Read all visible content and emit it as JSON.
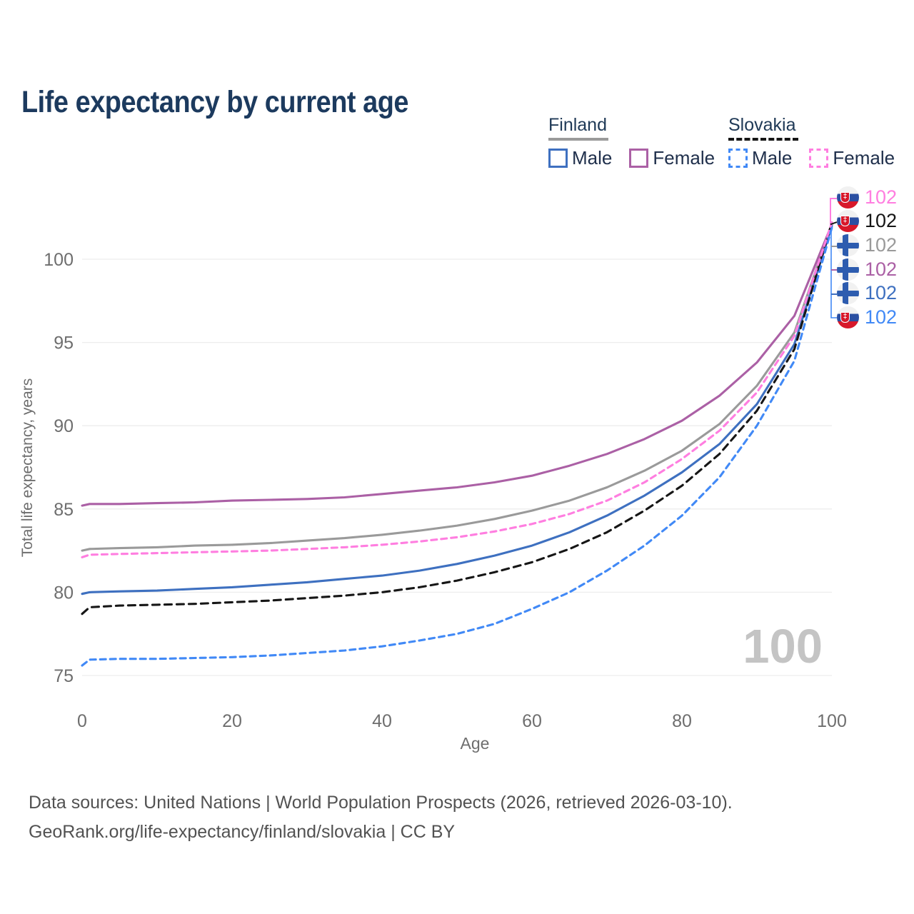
{
  "title": "Life expectancy by current age",
  "legend": {
    "finland": {
      "title": "Finland",
      "male_label": "Male",
      "female_label": "Female"
    },
    "slovakia": {
      "title": "Slovakia",
      "male_label": "Male",
      "female_label": "Female"
    }
  },
  "watermark": "100",
  "footer": {
    "line1": "Data sources: United Nations | World Population Prospects (2026, retrieved 2026-03-10).",
    "line2": "GeoRank.org/life-expectancy/finland/slovakia | CC BY"
  },
  "colors": {
    "title_text": "#1c3a5e",
    "legend_text": "#20304c",
    "axis_text": "#6e6e6e",
    "grid": "#ededed",
    "watermark": "#c4c4c4",
    "footer_text": "#525252",
    "finland_underline": "#9a9a9a",
    "slovakia_underline": "#161616"
  },
  "chart_data": {
    "type": "line",
    "title": "Life expectancy by current age",
    "xlabel": "Age",
    "ylabel": "Total life expectancy, years",
    "xlim": [
      0,
      100
    ],
    "ylim": [
      75,
      102.5
    ],
    "x_ticks": [
      0,
      20,
      40,
      60,
      80,
      100
    ],
    "y_ticks": [
      75,
      80,
      85,
      90,
      95,
      100
    ],
    "grid": "horizontal-only",
    "legend_position": "top-right",
    "ages": [
      0,
      1,
      5,
      10,
      15,
      20,
      25,
      30,
      35,
      40,
      45,
      50,
      55,
      60,
      65,
      70,
      75,
      80,
      85,
      90,
      95,
      100
    ],
    "series": [
      {
        "id": "finland_total",
        "name": "Finland Total",
        "country": "Finland",
        "sex": "Total",
        "style": "solid",
        "color": "#9a9a9a",
        "end_value": 102,
        "values": [
          82.5,
          82.6,
          82.65,
          82.7,
          82.8,
          82.85,
          82.95,
          83.1,
          83.25,
          83.45,
          83.7,
          84.0,
          84.4,
          84.9,
          85.5,
          86.3,
          87.3,
          88.5,
          90.1,
          92.4,
          95.6,
          102.1
        ]
      },
      {
        "id": "finland_female",
        "name": "Finland Female",
        "country": "Finland",
        "sex": "Female",
        "style": "solid",
        "color": "#ab60a5",
        "end_value": 102,
        "values": [
          85.2,
          85.3,
          85.3,
          85.35,
          85.4,
          85.5,
          85.55,
          85.6,
          85.7,
          85.9,
          86.1,
          86.3,
          86.6,
          87.0,
          87.6,
          88.3,
          89.2,
          90.3,
          91.8,
          93.8,
          96.6,
          102.1
        ]
      },
      {
        "id": "finland_male",
        "name": "Finland Male",
        "country": "Finland",
        "sex": "Male",
        "style": "solid",
        "color": "#3e70c0",
        "end_value": 102,
        "values": [
          79.9,
          80.0,
          80.05,
          80.1,
          80.2,
          80.3,
          80.45,
          80.6,
          80.8,
          81.0,
          81.3,
          81.7,
          82.2,
          82.8,
          83.6,
          84.6,
          85.8,
          87.2,
          88.9,
          91.3,
          94.9,
          102.0
        ]
      },
      {
        "id": "slovakia_total",
        "name": "Slovakia Total",
        "country": "Slovakia",
        "sex": "Total",
        "style": "dashed",
        "color": "#161616",
        "end_value": 102,
        "values": [
          78.7,
          79.1,
          79.2,
          79.25,
          79.3,
          79.4,
          79.5,
          79.65,
          79.8,
          80.0,
          80.3,
          80.7,
          81.2,
          81.8,
          82.6,
          83.6,
          84.9,
          86.4,
          88.3,
          90.9,
          94.6,
          102.2
        ]
      },
      {
        "id": "slovakia_female",
        "name": "Slovakia Female",
        "country": "Slovakia",
        "sex": "Female",
        "style": "dashed",
        "color": "#ff7ee0",
        "end_value": 102,
        "values": [
          82.1,
          82.25,
          82.3,
          82.35,
          82.4,
          82.45,
          82.5,
          82.6,
          82.7,
          82.85,
          83.05,
          83.3,
          83.65,
          84.1,
          84.7,
          85.5,
          86.6,
          88.0,
          89.7,
          92.0,
          95.4,
          102.2
        ]
      },
      {
        "id": "slovakia_male",
        "name": "Slovakia Male",
        "country": "Slovakia",
        "sex": "Male",
        "style": "dashed",
        "color": "#4189f6",
        "end_value": 102,
        "values": [
          75.6,
          75.95,
          76.0,
          76.0,
          76.05,
          76.1,
          76.2,
          76.35,
          76.5,
          76.75,
          77.1,
          77.5,
          78.1,
          79.0,
          80.0,
          81.3,
          82.8,
          84.6,
          86.9,
          90.0,
          93.9,
          101.9
        ]
      }
    ],
    "right_labels": [
      {
        "series": "slovakia_female",
        "flag": "slovakia",
        "value": "102"
      },
      {
        "series": "slovakia_total",
        "flag": "slovakia",
        "value": "102"
      },
      {
        "series": "finland_total",
        "flag": "finland",
        "value": "102"
      },
      {
        "series": "finland_female",
        "flag": "finland",
        "value": "102"
      },
      {
        "series": "finland_male",
        "flag": "finland",
        "value": "102"
      },
      {
        "series": "slovakia_male",
        "flag": "slovakia",
        "value": "102"
      }
    ]
  }
}
